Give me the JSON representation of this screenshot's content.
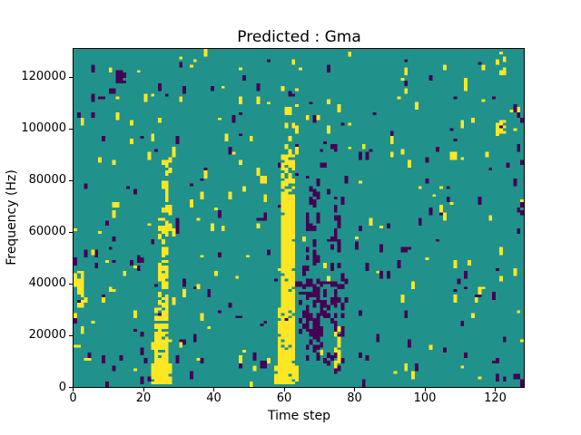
{
  "chart_data": {
    "type": "heatmap",
    "title": "Predicted : Gma",
    "xlabel": "Time step",
    "ylabel": "Frequency (Hz)",
    "x_ticks": [
      0,
      20,
      40,
      60,
      80,
      100,
      120
    ],
    "y_ticks": [
      0,
      20000,
      40000,
      60000,
      80000,
      100000,
      120000
    ],
    "xlim": [
      0,
      128
    ],
    "ylim": [
      0,
      131072
    ],
    "grid": {
      "cols": 128,
      "rows": 128
    },
    "legend": "none",
    "colors": {
      "low": "#440154",
      "mid": "#21918c",
      "high": "#fde725",
      "axis": "#000000",
      "text": "#000000",
      "background": "#ffffff"
    },
    "value_meaning": {
      "0": "low",
      "1": "mid/background",
      "2": "high"
    },
    "features": [
      {
        "cols": [
          22,
          28
        ],
        "rows": [
          1,
          9
        ],
        "value": 2,
        "density": 0.8
      },
      {
        "cols": [
          23,
          27
        ],
        "rows": [
          9,
          30
        ],
        "value": 2,
        "density": 0.75
      },
      {
        "cols": [
          24,
          27
        ],
        "rows": [
          30,
          48
        ],
        "value": 2,
        "density": 0.65
      },
      {
        "cols": [
          24,
          28
        ],
        "rows": [
          48,
          64
        ],
        "value": 2,
        "density": 0.4
      },
      {
        "cols": [
          25,
          28
        ],
        "rows": [
          64,
          86
        ],
        "value": 2,
        "density": 0.3
      },
      {
        "cols": [
          64,
          67
        ],
        "rows": [
          20,
          46
        ],
        "value": 0,
        "density": 0.25
      },
      {
        "cols": [
          66,
          70
        ],
        "rows": [
          10,
          50
        ],
        "value": 0,
        "density": 0.45
      },
      {
        "cols": [
          66,
          70
        ],
        "rows": [
          50,
          80
        ],
        "value": 0,
        "density": 0.45
      },
      {
        "cols": [
          67,
          71
        ],
        "rows": [
          80,
          90
        ],
        "value": 0,
        "density": 0.25
      },
      {
        "cols": [
          70,
          73
        ],
        "rows": [
          8,
          40
        ],
        "value": 0,
        "density": 0.3
      },
      {
        "cols": [
          73,
          77
        ],
        "rows": [
          5,
          40
        ],
        "value": 0,
        "density": 0.4
      },
      {
        "cols": [
          73,
          77
        ],
        "rows": [
          40,
          72
        ],
        "value": 0,
        "density": 0.35
      },
      {
        "cols": [
          74,
          76
        ],
        "rows": [
          7,
          24
        ],
        "value": 2,
        "density": 0.45
      },
      {
        "cols": [
          57,
          64
        ],
        "rows": [
          1,
          8
        ],
        "value": 2,
        "density": 0.85
      },
      {
        "cols": [
          58,
          63
        ],
        "rows": [
          8,
          30
        ],
        "value": 2,
        "density": 0.9
      },
      {
        "cols": [
          59,
          63
        ],
        "rows": [
          30,
          72
        ],
        "value": 2,
        "density": 0.92
      },
      {
        "cols": [
          59,
          63
        ],
        "rows": [
          72,
          88
        ],
        "value": 2,
        "density": 0.7
      },
      {
        "cols": [
          60,
          64
        ],
        "rows": [
          88,
          100
        ],
        "value": 2,
        "density": 0.35
      },
      {
        "cols": [
          12,
          15
        ],
        "rows": [
          115,
          120
        ],
        "value": 0,
        "density": 0.85
      },
      {
        "cols": [
          120,
          123
        ],
        "rows": [
          95,
          101
        ],
        "value": 2,
        "density": 0.6
      },
      {
        "cols": [
          120,
          123
        ],
        "rows": [
          118,
          127
        ],
        "value": 2,
        "density": 0.4
      },
      {
        "cols": [
          125,
          128
        ],
        "rows": [
          55,
          115
        ],
        "value": 0,
        "density": 0.12
      },
      {
        "cols": [
          125,
          128
        ],
        "rows": [
          0,
          5
        ],
        "value": 0,
        "density": 0.4
      },
      {
        "cols": [
          0,
          3
        ],
        "rows": [
          26,
          44
        ],
        "value": 2,
        "density": 0.25
      }
    ],
    "noise": {
      "seed": 12,
      "spots": [
        {
          "value": 0,
          "count": 185
        },
        {
          "value": 2,
          "count": 170
        }
      ],
      "max_run": 3,
      "wide_chance": 0.07
    }
  }
}
